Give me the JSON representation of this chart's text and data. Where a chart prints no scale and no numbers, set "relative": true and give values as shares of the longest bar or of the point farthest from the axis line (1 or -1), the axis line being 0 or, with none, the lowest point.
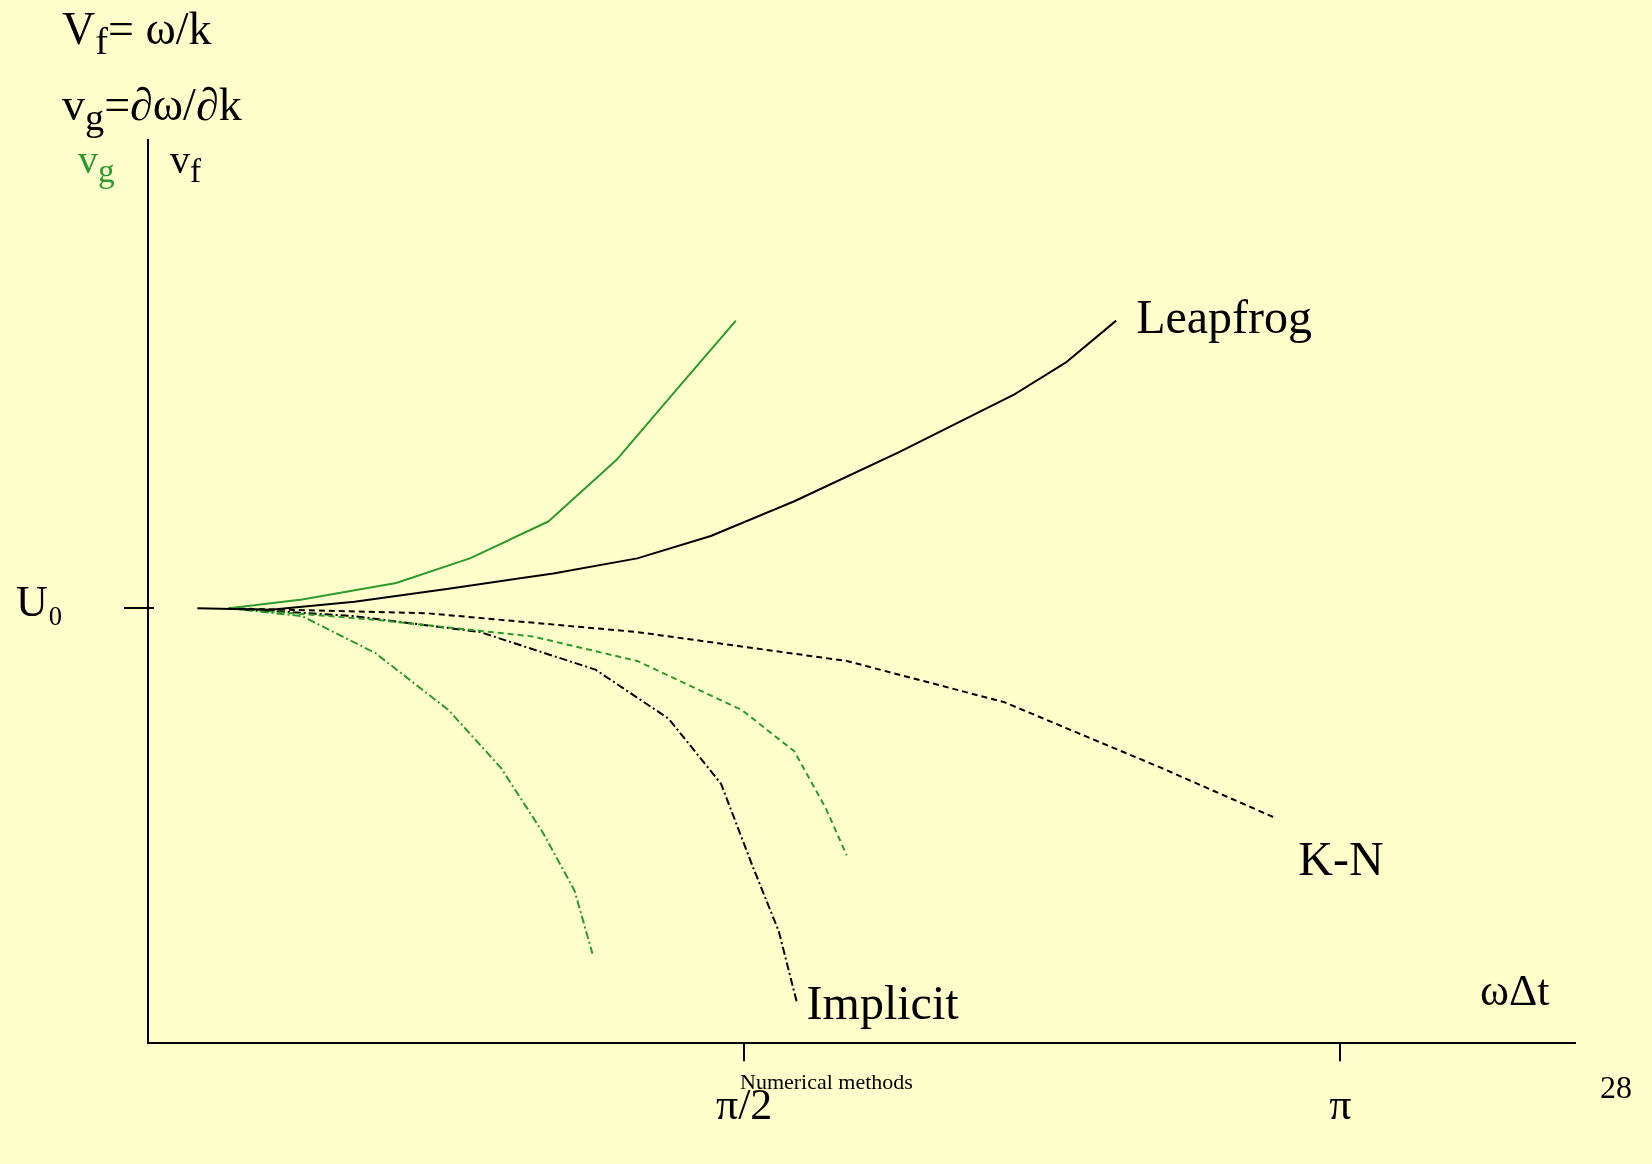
{
  "chart_data": {
    "type": "line",
    "xlabel": "ωΔt",
    "ylabel": "v$_{f}$",
    "relative": true,
    "annotations": [
      "V$_{f}$= ω/k",
      "v$_{g}$=∂ω/∂k",
      "v$_{g}$",
      "Numerical methods",
      "28",
      "U₀"
    ],
    "xlim": [
      0,
      3.76
    ],
    "xticks": [
      {
        "value": 1.5708,
        "label": "π/2"
      },
      {
        "value": 3.1416,
        "label": "π"
      }
    ],
    "grid": false,
    "legend": false,
    "marker": "none",
    "series": [
      {
        "name": "Leapfrog",
        "color": "#000000",
        "line_style": "solid",
        "x": [
          0.13,
          0.323,
          0.544,
          0.792,
          1.068,
          1.289,
          1.483,
          1.703,
          1.979,
          2.283,
          2.421,
          2.551
        ],
        "values": [
          0.602,
          0.6,
          0.611,
          0.629,
          0.65,
          0.671,
          0.702,
          0.75,
          0.818,
          0.898,
          0.943,
          1.0
        ]
      },
      {
        "color": "#2e9a2e",
        "line_style": "solid",
        "x": [
          0.213,
          0.406,
          0.654,
          0.848,
          1.055,
          1.234,
          1.4,
          1.549
        ],
        "values": [
          0.602,
          0.614,
          0.637,
          0.671,
          0.722,
          0.807,
          0.909,
          1.0
        ]
      },
      {
        "name": "K-N",
        "color": "#000000",
        "line_style": "dashed",
        "x": [
          0.213,
          0.737,
          1.289,
          1.841,
          2.256,
          2.67,
          2.965
        ],
        "values": [
          0.602,
          0.595,
          0.569,
          0.529,
          0.472,
          0.381,
          0.313
        ]
      },
      {
        "color": "#2e9a2e",
        "line_style": "dashed",
        "x": [
          0.213,
          0.599,
          1.013,
          1.289,
          1.565,
          1.703,
          1.786,
          1.841
        ],
        "values": [
          0.602,
          0.586,
          0.563,
          0.529,
          0.461,
          0.404,
          0.325,
          0.26
        ]
      },
      {
        "name": "Implicit",
        "color": "#000000",
        "line_style": "dotted",
        "x": [
          0.213,
          0.544,
          0.875,
          1.179,
          1.372,
          1.51,
          1.593,
          1.662,
          1.709
        ],
        "values": [
          0.602,
          0.591,
          0.569,
          0.517,
          0.449,
          0.359,
          0.245,
          0.155,
          0.058
        ]
      },
      {
        "color": "#2e9a2e",
        "line_style": "dotted",
        "x": [
          0.213,
          0.406,
          0.599,
          0.792,
          0.93,
          1.041,
          1.124,
          1.171
        ],
        "values": [
          0.602,
          0.591,
          0.54,
          0.461,
          0.381,
          0.291,
          0.211,
          0.124
        ]
      }
    ]
  }
}
